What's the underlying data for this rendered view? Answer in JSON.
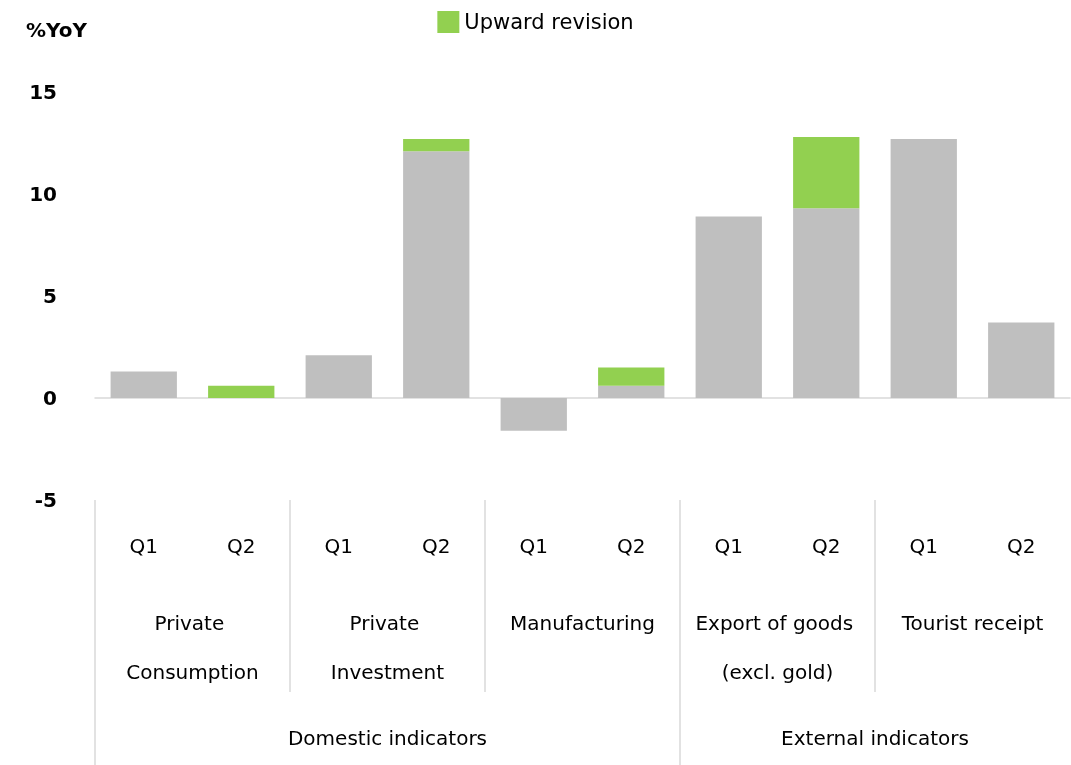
{
  "chart_data": {
    "type": "bar",
    "stacked": true,
    "ylabel": "%YoY",
    "categories": [
      "Q1",
      "Q2",
      "Q1",
      "Q2",
      "Q1",
      "Q2",
      "Q1",
      "Q2",
      "Q1",
      "Q2"
    ],
    "series": [
      {
        "color": "#bfbfbf",
        "values": [
          1.3,
          0,
          2.1,
          12.1,
          -1.6,
          0.6,
          8.9,
          9.3,
          12.7,
          3.7
        ]
      },
      {
        "name": "Upward revision",
        "color": "#92d050",
        "values": [
          0,
          0.6,
          0,
          0.6,
          0,
          0.9,
          0,
          3.5,
          0,
          0
        ]
      }
    ],
    "ylim": [
      -5,
      15
    ],
    "yticks": [
      -5,
      0,
      5,
      10,
      15
    ],
    "legend": "top",
    "annotations": [
      "Private Consumption",
      "Private Investment",
      "Manufacturing",
      "Export of goods (excl. gold)",
      "Tourist receipt",
      "Domestic indicators",
      "External indicators"
    ]
  }
}
